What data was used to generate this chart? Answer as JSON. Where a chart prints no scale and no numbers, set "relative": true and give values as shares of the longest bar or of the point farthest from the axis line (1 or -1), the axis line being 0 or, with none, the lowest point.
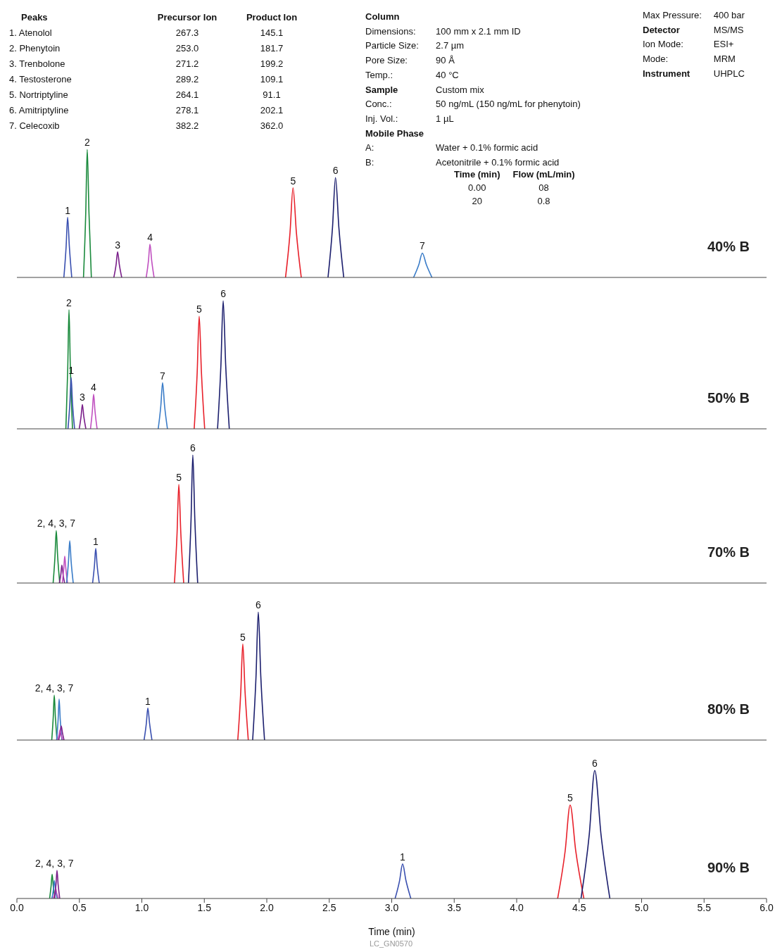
{
  "chart_data": [
    {
      "type": "other",
      "title": "Peaks",
      "data_labels": true,
      "categories": [
        "1. Atenolol",
        "2. Phenytoin",
        "3. Trenbolone",
        "4. Testosterone",
        "5. Nortriptyline",
        "6. Amitriptyline",
        "7. Celecoxib"
      ],
      "series": [
        {
          "name": "Precursor Ion",
          "values": [
            267.3,
            253.0,
            271.2,
            289.2,
            264.1,
            278.1,
            382.2
          ],
          "value_labels": [
            "267.3",
            "253.0",
            "271.2",
            "289.2",
            "264.1",
            "278.1",
            "382.2"
          ]
        },
        {
          "name": "Product Ion",
          "values": [
            145.1,
            181.7,
            199.2,
            109.1,
            91.1,
            202.1,
            362.0
          ],
          "value_labels": [
            "145.1",
            "181.7",
            "199.2",
            "109.1",
            "91.1",
            "202.1",
            "362.0"
          ]
        }
      ]
    },
    {
      "type": "other",
      "annotations": [
        "Column",
        "Dimensions:",
        "100 mm x 2.1 mm ID",
        "Particle Size:",
        "2.7 µm",
        "Pore Size:",
        "90 Å",
        "Temp.:",
        "40 °C",
        "Sample",
        "Custom mix",
        "Conc.:",
        "50 ng/mL (150 ng/mL for phenytoin)",
        "Inj. Vol.:",
        "1 µL",
        "Mobile Phase",
        "A:",
        "Water + 0.1% formic acid",
        "B:",
        "Acetonitrile + 0.1% formic acid"
      ]
    },
    {
      "type": "other",
      "categories": [
        "Time (min)",
        "Flow (mL/min)"
      ],
      "annotations": [
        "0.00",
        "08",
        "20",
        "0.8"
      ]
    },
    {
      "type": "other",
      "annotations": [
        "Max Pressure:",
        "400 bar",
        "Detector",
        "MS/MS",
        "Ion Mode:",
        "ESI+",
        "Mode:",
        "MRM",
        "Instrument",
        "UHPLC"
      ]
    },
    {
      "type": "line",
      "title": "40% B",
      "relative": true,
      "xlim": [
        0,
        6
      ],
      "tick_labels": false,
      "series": [
        {
          "color": "#3a50b0",
          "x": [
            0.376,
            0.394,
            0.406,
            0.42,
            0.439
          ],
          "values": [
            0,
            0.24,
            0.47,
            0.24,
            0
          ]
        },
        {
          "color": "#1a8a3c",
          "x": [
            0.533,
            0.551,
            0.563,
            0.577,
            0.596
          ],
          "values": [
            0,
            0.5,
            1,
            0.5,
            0
          ]
        },
        {
          "color": "#7a1f8a",
          "x": [
            0.776,
            0.794,
            0.806,
            0.82,
            0.839
          ],
          "values": [
            0,
            0.1,
            0.2,
            0.1,
            0
          ]
        },
        {
          "color": "#c050c0",
          "x": [
            1.035,
            1.053,
            1.065,
            1.079,
            1.098
          ],
          "values": [
            0,
            0.13,
            0.26,
            0.13,
            0
          ]
        },
        {
          "color": "#e8202a",
          "x": [
            2.15,
            2.186,
            2.21,
            2.237,
            2.276
          ],
          "values": [
            0,
            0.35,
            0.7,
            0.35,
            0
          ]
        },
        {
          "color": "#1c1f6e",
          "x": [
            2.49,
            2.526,
            2.55,
            2.577,
            2.616
          ],
          "values": [
            0,
            0.39,
            0.78,
            0.39,
            0
          ]
        },
        {
          "color": "#3a7cc8",
          "x": [
            3.175,
            3.217,
            3.245,
            3.277,
            3.322
          ],
          "values": [
            0,
            0.1,
            0.19,
            0.1,
            0
          ]
        }
      ],
      "annotations": [
        {
          "text": "1",
          "x": 0.406,
          "y": 0.47
        },
        {
          "text": "2",
          "x": 0.563,
          "y": 1
        },
        {
          "text": "3",
          "x": 0.806,
          "y": 0.2
        },
        {
          "text": "4",
          "x": 1.065,
          "y": 0.26
        },
        {
          "text": "5",
          "x": 2.21,
          "y": 0.7
        },
        {
          "text": "6",
          "x": 2.55,
          "y": 0.78
        },
        {
          "text": "7",
          "x": 3.245,
          "y": 0.19
        }
      ]
    },
    {
      "type": "line",
      "title": "50% B",
      "relative": true,
      "xlim": [
        0,
        6
      ],
      "tick_labels": false,
      "series": [
        {
          "color": "#1a8a3c",
          "x": [
            0.392,
            0.407,
            0.417,
            0.428,
            0.445
          ],
          "values": [
            0,
            0.47,
            0.93,
            0.47,
            0
          ]
        },
        {
          "color": "#3a50b0",
          "x": [
            0.409,
            0.424,
            0.434,
            0.445,
            0.462
          ],
          "values": [
            0,
            0.2,
            0.4,
            0.2,
            0
          ]
        },
        {
          "color": "#7a1f8a",
          "x": [
            0.499,
            0.514,
            0.524,
            0.535,
            0.552
          ],
          "values": [
            0,
            0.1,
            0.19,
            0.1,
            0
          ]
        },
        {
          "color": "#c050c0",
          "x": [
            0.589,
            0.604,
            0.614,
            0.625,
            0.642
          ],
          "values": [
            0,
            0.14,
            0.27,
            0.14,
            0
          ]
        },
        {
          "color": "#3a7cc8",
          "x": [
            1.131,
            1.152,
            1.166,
            1.182,
            1.205
          ],
          "values": [
            0,
            0.18,
            0.36,
            0.18,
            0
          ]
        },
        {
          "color": "#e8202a",
          "x": [
            1.419,
            1.443,
            1.459,
            1.477,
            1.503
          ],
          "values": [
            0,
            0.44,
            0.88,
            0.44,
            0
          ]
        },
        {
          "color": "#1c1f6e",
          "x": [
            1.606,
            1.633,
            1.651,
            1.671,
            1.7
          ],
          "values": [
            0,
            0.5,
            1,
            0.5,
            0
          ]
        }
      ],
      "annotations": [
        {
          "text": "2",
          "x": 0.417,
          "y": 0.93
        },
        {
          "text": "1",
          "x": 0.434,
          "y": 0.4
        },
        {
          "text": "3",
          "x": 0.524,
          "y": 0.19
        },
        {
          "text": "4",
          "x": 0.614,
          "y": 0.27
        },
        {
          "text": "7",
          "x": 1.166,
          "y": 0.36
        },
        {
          "text": "5",
          "x": 1.459,
          "y": 0.88
        },
        {
          "text": "6",
          "x": 1.651,
          "y": 1
        }
      ]
    },
    {
      "type": "line",
      "title": "70% B",
      "relative": true,
      "xlim": [
        0,
        6
      ],
      "tick_labels": false,
      "series": [
        {
          "color": "#1a8a3c",
          "x": [
            0.29,
            0.305,
            0.315,
            0.326,
            0.343
          ],
          "values": [
            0,
            0.21,
            0.41,
            0.21,
            0
          ]
        },
        {
          "color": "#7a1f8a",
          "x": [
            0.34,
            0.352,
            0.36,
            0.369,
            0.382
          ],
          "values": [
            0,
            0.07,
            0.14,
            0.07,
            0
          ]
        },
        {
          "color": "#c050c0",
          "x": [
            0.363,
            0.375,
            0.383,
            0.392,
            0.405
          ],
          "values": [
            0,
            0.11,
            0.21,
            0.11,
            0
          ]
        },
        {
          "color": "#3a7cc8",
          "x": [
            0.398,
            0.413,
            0.423,
            0.434,
            0.451
          ],
          "values": [
            0,
            0.17,
            0.33,
            0.17,
            0
          ]
        },
        {
          "color": "#3a50b0",
          "x": [
            0.606,
            0.621,
            0.631,
            0.642,
            0.659
          ],
          "values": [
            0,
            0.14,
            0.27,
            0.14,
            0
          ]
        },
        {
          "color": "#e8202a",
          "x": [
            1.261,
            1.282,
            1.296,
            1.312,
            1.335
          ],
          "values": [
            0,
            0.39,
            0.77,
            0.39,
            0
          ]
        },
        {
          "color": "#1c1f6e",
          "x": [
            1.373,
            1.394,
            1.408,
            1.424,
            1.447
          ],
          "values": [
            0,
            0.5,
            1,
            0.5,
            0
          ]
        }
      ],
      "annotations": [
        {
          "text": "2, 4, 3, 7",
          "x": 0.315,
          "y": 0.41
        },
        {
          "text": "1",
          "x": 0.631,
          "y": 0.27
        },
        {
          "text": "5",
          "x": 1.296,
          "y": 0.77
        },
        {
          "text": "6",
          "x": 1.408,
          "y": 1
        }
      ]
    },
    {
      "type": "line",
      "title": "80% B",
      "relative": true,
      "xlim": [
        0,
        6
      ],
      "tick_labels": false,
      "series": [
        {
          "color": "#1a8a3c",
          "x": [
            0.279,
            0.291,
            0.299,
            0.308,
            0.321
          ],
          "values": [
            0,
            0.18,
            0.35,
            0.18,
            0
          ]
        },
        {
          "color": "#3a7cc8",
          "x": [
            0.318,
            0.33,
            0.338,
            0.347,
            0.36
          ],
          "values": [
            0,
            0.16,
            0.32,
            0.16,
            0
          ]
        },
        {
          "color": "#7a1f8a",
          "x": [
            0.335,
            0.347,
            0.355,
            0.364,
            0.377
          ],
          "values": [
            0,
            0.06,
            0.11,
            0.06,
            0
          ]
        },
        {
          "color": "#c050c0",
          "x": [
            0.325,
            0.337,
            0.345,
            0.354,
            0.367
          ],
          "values": [
            0,
            0.04,
            0.08,
            0.04,
            0
          ]
        },
        {
          "color": "#3a50b0",
          "x": [
            1.018,
            1.036,
            1.048,
            1.062,
            1.081
          ],
          "values": [
            0,
            0.13,
            0.25,
            0.13,
            0
          ]
        },
        {
          "color": "#e8202a",
          "x": [
            1.768,
            1.792,
            1.808,
            1.826,
            1.852
          ],
          "values": [
            0,
            0.38,
            0.75,
            0.38,
            0
          ]
        },
        {
          "color": "#1c1f6e",
          "x": [
            1.887,
            1.914,
            1.932,
            1.952,
            1.982
          ],
          "values": [
            0,
            0.5,
            1,
            0.5,
            0
          ]
        }
      ],
      "annotations": [
        {
          "text": "2, 4, 3, 7",
          "x": 0.299,
          "y": 0.35
        },
        {
          "text": "1",
          "x": 1.048,
          "y": 0.25
        },
        {
          "text": "5",
          "x": 1.808,
          "y": 0.75
        },
        {
          "text": "6",
          "x": 1.932,
          "y": 1
        }
      ]
    },
    {
      "type": "line",
      "title": "90% B",
      "relative": true,
      "xlim": [
        0,
        6
      ],
      "xlabel": "Time (min)",
      "xticks": [
        {
          "value": 0,
          "label": "0.0"
        },
        0.5,
        {
          "value": 1,
          "label": "1.0"
        },
        1.5,
        {
          "value": 2,
          "label": "2.0"
        },
        2.5,
        {
          "value": 3,
          "label": "3.0"
        },
        3.5,
        {
          "value": 4,
          "label": "4.0"
        },
        4.5,
        {
          "value": 5,
          "label": "5.0"
        },
        5.5,
        {
          "value": 6,
          "label": "6.0"
        }
      ],
      "series": [
        {
          "color": "#1a8a3c",
          "x": [
            0.262,
            0.274,
            0.282,
            0.291,
            0.304
          ],
          "values": [
            0,
            0.1,
            0.19,
            0.1,
            0
          ]
        },
        {
          "color": "#3a7cc8",
          "x": [
            0.28,
            0.292,
            0.3,
            0.309,
            0.322
          ],
          "values": [
            0,
            0.07,
            0.14,
            0.07,
            0
          ]
        },
        {
          "color": "#c050c0",
          "x": [
            0.29,
            0.302,
            0.31,
            0.319,
            0.332
          ],
          "values": [
            0,
            0.04,
            0.08,
            0.04,
            0
          ]
        },
        {
          "color": "#7a1f8a",
          "x": [
            0.301,
            0.313,
            0.321,
            0.33,
            0.343
          ],
          "values": [
            0,
            0.11,
            0.22,
            0.11,
            0
          ]
        },
        {
          "color": "#3a50b0",
          "x": [
            3.027,
            3.063,
            3.087,
            3.114,
            3.153
          ],
          "values": [
            0,
            0.14,
            0.27,
            0.14,
            0
          ]
        },
        {
          "color": "#e8202a",
          "x": [
            4.328,
            4.388,
            4.428,
            4.473,
            4.538
          ],
          "values": [
            0,
            0.37,
            0.73,
            0.37,
            0
          ]
        },
        {
          "color": "#1c1f6e",
          "x": [
            4.515,
            4.581,
            4.625,
            4.675,
            4.746
          ],
          "values": [
            0,
            0.5,
            1,
            0.5,
            0
          ]
        }
      ],
      "annotations": [
        {
          "text": "2, 4, 3, 7",
          "x": 0.3,
          "y": 0.22
        },
        {
          "text": "1",
          "x": 3.087,
          "y": 0.27
        },
        {
          "text": "5",
          "x": 4.428,
          "y": 0.73
        },
        {
          "text": "6",
          "x": 4.625,
          "y": 1
        },
        "LC_GN0570"
      ]
    }
  ]
}
